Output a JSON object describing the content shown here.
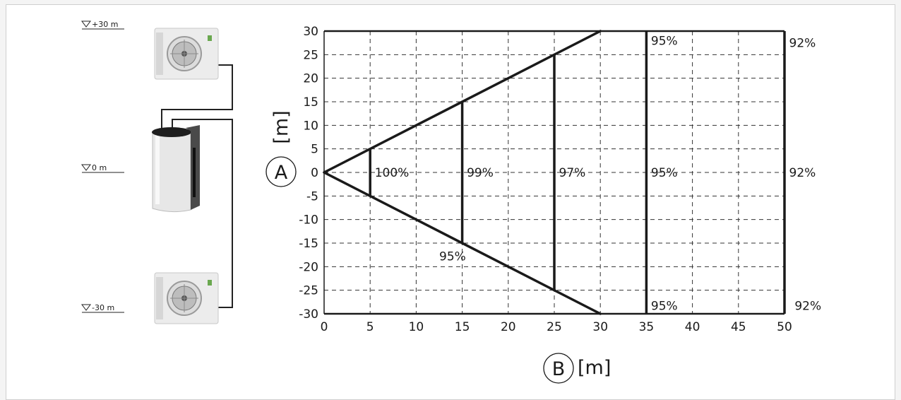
{
  "levels": [
    {
      "label": "+30 m"
    },
    {
      "label": "0 m"
    },
    {
      "label": "-30 m"
    }
  ],
  "axis_y": {
    "badge": "A",
    "unit": "[m]"
  },
  "axis_x": {
    "badge": "B",
    "unit": "[m]"
  },
  "chart_data": {
    "type": "line",
    "title": "",
    "xlim": [
      0,
      50
    ],
    "ylim": [
      -30,
      30
    ],
    "x_ticks": [
      0,
      5,
      10,
      15,
      20,
      25,
      30,
      35,
      40,
      45,
      50
    ],
    "y_ticks": [
      30,
      25,
      20,
      15,
      10,
      5,
      0,
      -5,
      -10,
      -15,
      -20,
      -25,
      -30
    ],
    "grid": true,
    "boundary": [
      {
        "name": "",
        "points": [
          [
            0,
            0
          ],
          [
            30,
            30
          ]
        ]
      },
      {
        "name": "",
        "points": [
          [
            0,
            0
          ],
          [
            30,
            -30
          ]
        ]
      }
    ],
    "zone_lines": [
      {
        "x": 5,
        "y_min": -5,
        "y_max": 5
      },
      {
        "x": 15,
        "y_min": -15,
        "y_max": 15
      },
      {
        "x": 25,
        "y_min": -25,
        "y_max": 25
      },
      {
        "x": 35,
        "y_min": -30,
        "y_max": 30
      },
      {
        "x": 50,
        "y_min": -30,
        "y_max": 30
      }
    ],
    "labels": [
      {
        "text": "100%",
        "x": 5.5,
        "y": 0
      },
      {
        "text": "99%",
        "x": 15.5,
        "y": 0
      },
      {
        "text": "97%",
        "x": 25.5,
        "y": 0
      },
      {
        "text": "95%",
        "x": 35.5,
        "y": 0
      },
      {
        "text": "92%",
        "x": 50.5,
        "y": 0
      },
      {
        "text": "95%",
        "x": 35.5,
        "y": 28
      },
      {
        "text": "92%",
        "x": 50.5,
        "y": 27.5
      },
      {
        "text": "95%",
        "x": 35.5,
        "y": -28.3
      },
      {
        "text": "92%",
        "x": 51.1,
        "y": -28.3
      },
      {
        "text": "95%",
        "x": 12.5,
        "y": -17.8
      }
    ]
  }
}
